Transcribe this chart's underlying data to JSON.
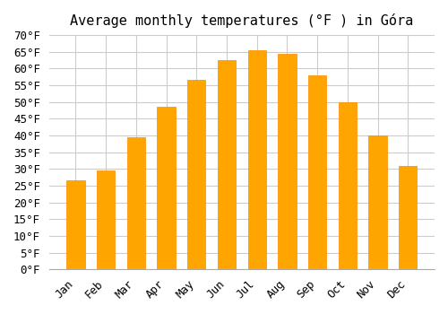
{
  "title": "Average monthly temperatures (°F ) in Góra",
  "months": [
    "Jan",
    "Feb",
    "Mar",
    "Apr",
    "May",
    "Jun",
    "Jul",
    "Aug",
    "Sep",
    "Oct",
    "Nov",
    "Dec"
  ],
  "values": [
    26.5,
    29.5,
    39.5,
    48.5,
    56.5,
    62.5,
    65.5,
    64.5,
    58.0,
    50.0,
    40.0,
    31.0
  ],
  "bar_color": "#FFA500",
  "bar_edge_color": "#FF8C00",
  "ylim": [
    0,
    70
  ],
  "yticks": [
    0,
    5,
    10,
    15,
    20,
    25,
    30,
    35,
    40,
    45,
    50,
    55,
    60,
    65,
    70
  ],
  "background_color": "#ffffff",
  "grid_color": "#cccccc",
  "title_fontsize": 11,
  "tick_fontsize": 9,
  "font_family": "monospace"
}
